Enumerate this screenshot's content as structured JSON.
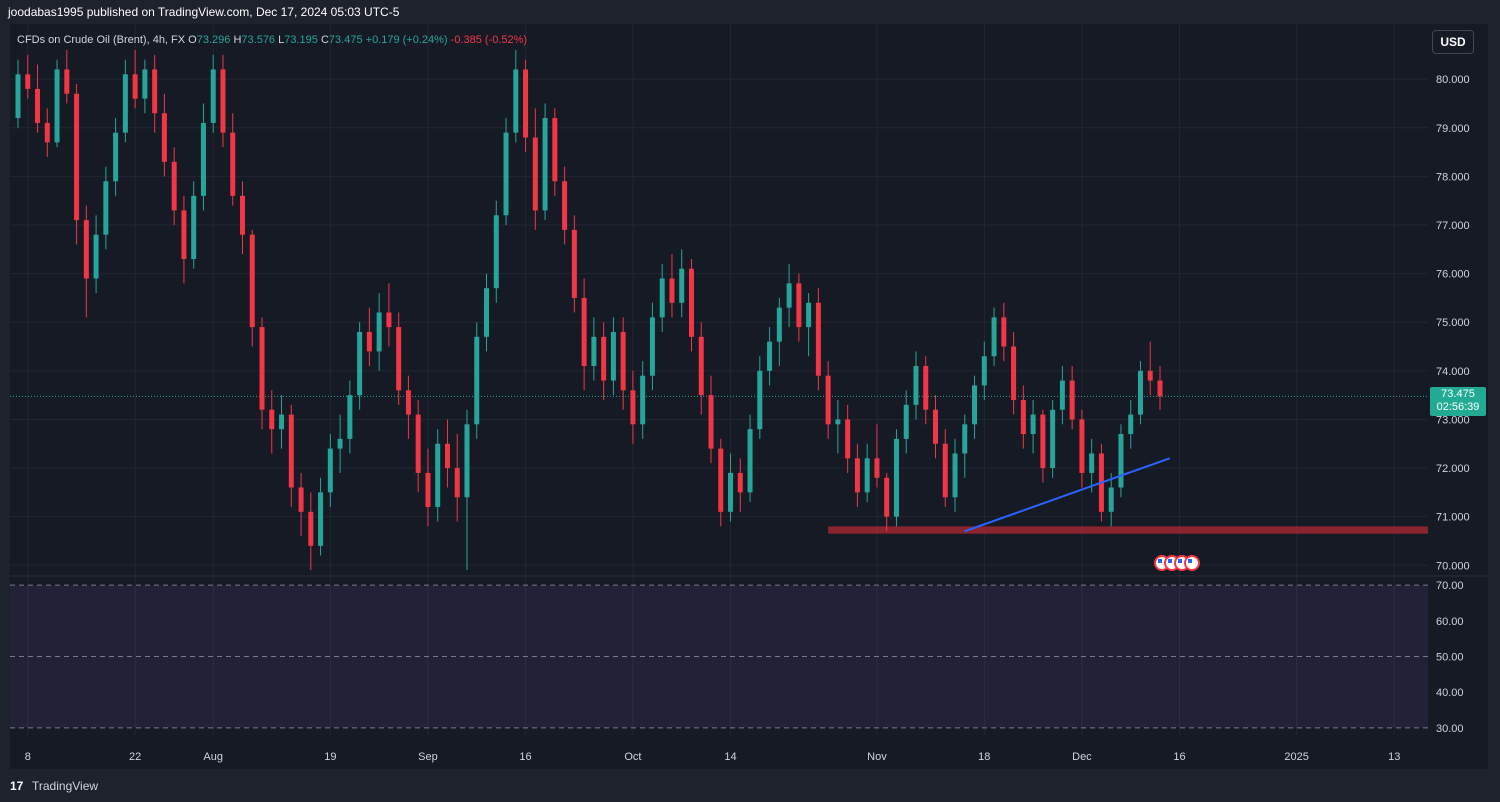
{
  "header": {
    "publisher_line": "joodabas1995 published on TradingView.com, Dec 17, 2024 05:03 UTC-5"
  },
  "legend": {
    "symbol": "CFDs on Crude Oil (Brent), 4h, FX",
    "open_label": "O",
    "open": "73.296",
    "high_label": "H",
    "high": "73.576",
    "low_label": "L",
    "low": "73.195",
    "close_label": "C",
    "close": "73.475",
    "change": "+0.179 (+0.24%)",
    "change2": "-0.385 (-0.52%)"
  },
  "controls": {
    "currency": "USD"
  },
  "last_price": {
    "price": "73.475",
    "countdown": "02:56:39"
  },
  "footer": {
    "brand": "TradingView",
    "logo_text": "17"
  },
  "colors": {
    "up": "#26a69a",
    "down": "#f23645",
    "trendline": "#2962ff",
    "support_zone": "#b22833",
    "rsi_band": "#7e57c2",
    "background": "#161a25"
  },
  "chart_data": {
    "type": "candlestick",
    "price_ylim": [
      69.8,
      80.6
    ],
    "price_ticks": [
      "80.000",
      "79.000",
      "78.000",
      "77.000",
      "76.000",
      "75.000",
      "74.000",
      "73.000",
      "72.000",
      "71.000",
      "70.000"
    ],
    "price_tick_values": [
      80,
      79,
      78,
      77,
      76,
      75,
      74,
      73,
      72,
      71,
      70
    ],
    "osc_ylim": [
      28,
      72
    ],
    "osc_ticks": [
      "70.00",
      "60.00",
      "50.00",
      "40.00",
      "30.00"
    ],
    "osc_tick_values": [
      70,
      60,
      50,
      40,
      30
    ],
    "osc_dashed_levels": [
      70,
      50,
      30
    ],
    "x_tick_labels": [
      "8",
      "22",
      "Aug",
      "19",
      "Sep",
      "16",
      "Oct",
      "14",
      "Nov",
      "18",
      "Dec",
      "16",
      "2025",
      "13"
    ],
    "x_tick_indices": [
      1,
      12,
      20,
      32,
      42,
      52,
      63,
      73,
      88,
      99,
      109,
      119,
      131,
      141
    ],
    "x_count": 150,
    "last_close": 73.475,
    "support_zone": {
      "x_start_index": 83,
      "y_low": 70.65,
      "y_high": 70.8
    },
    "trendline": {
      "x1_index": 97,
      "y1": 70.7,
      "x2_index": 118,
      "y2": 72.2
    },
    "ohlc": [
      [
        79.2,
        80.4,
        79.0,
        80.1
      ],
      [
        80.1,
        80.5,
        79.6,
        79.8
      ],
      [
        79.8,
        80.3,
        78.9,
        79.1
      ],
      [
        79.1,
        79.4,
        78.4,
        78.7
      ],
      [
        78.7,
        80.4,
        78.6,
        80.2
      ],
      [
        80.2,
        80.6,
        79.5,
        79.7
      ],
      [
        79.7,
        79.9,
        76.6,
        77.1
      ],
      [
        77.1,
        77.4,
        75.1,
        75.9
      ],
      [
        75.9,
        77.2,
        75.6,
        76.8
      ],
      [
        76.8,
        78.2,
        76.5,
        77.9
      ],
      [
        77.9,
        79.2,
        77.6,
        78.9
      ],
      [
        78.9,
        80.4,
        78.7,
        80.1
      ],
      [
        80.1,
        80.6,
        79.4,
        79.6
      ],
      [
        79.6,
        80.4,
        79.3,
        80.2
      ],
      [
        80.2,
        80.5,
        78.9,
        79.3
      ],
      [
        79.3,
        79.7,
        78.0,
        78.3
      ],
      [
        78.3,
        78.6,
        77.0,
        77.3
      ],
      [
        77.3,
        77.6,
        75.8,
        76.3
      ],
      [
        76.3,
        77.9,
        76.1,
        77.6
      ],
      [
        77.6,
        79.5,
        77.3,
        79.1
      ],
      [
        79.1,
        80.5,
        78.9,
        80.2
      ],
      [
        80.2,
        80.5,
        78.6,
        78.9
      ],
      [
        78.9,
        79.3,
        77.4,
        77.6
      ],
      [
        77.6,
        77.9,
        76.4,
        76.8
      ],
      [
        76.8,
        76.9,
        74.5,
        74.9
      ],
      [
        74.9,
        75.1,
        72.8,
        73.2
      ],
      [
        73.2,
        73.6,
        72.3,
        72.8
      ],
      [
        72.8,
        73.5,
        72.4,
        73.1
      ],
      [
        73.1,
        73.3,
        71.2,
        71.6
      ],
      [
        71.6,
        71.9,
        70.6,
        71.1
      ],
      [
        71.1,
        71.5,
        69.9,
        70.4
      ],
      [
        70.4,
        71.8,
        70.2,
        71.5
      ],
      [
        71.5,
        72.7,
        71.2,
        72.4
      ],
      [
        72.4,
        73.1,
        71.9,
        72.6
      ],
      [
        72.6,
        73.8,
        72.3,
        73.5
      ],
      [
        73.5,
        75.0,
        73.2,
        74.8
      ],
      [
        74.8,
        75.3,
        74.1,
        74.4
      ],
      [
        74.4,
        75.6,
        74.0,
        75.2
      ],
      [
        75.2,
        75.8,
        74.5,
        74.9
      ],
      [
        74.9,
        75.2,
        73.3,
        73.6
      ],
      [
        73.6,
        73.9,
        72.6,
        73.1
      ],
      [
        73.1,
        73.4,
        71.5,
        71.9
      ],
      [
        71.9,
        72.4,
        70.8,
        71.2
      ],
      [
        71.2,
        72.8,
        70.9,
        72.5
      ],
      [
        72.5,
        73.0,
        71.6,
        72.0
      ],
      [
        72.0,
        72.7,
        70.9,
        71.4
      ],
      [
        71.4,
        73.2,
        69.9,
        72.9
      ],
      [
        72.9,
        75.0,
        72.6,
        74.7
      ],
      [
        74.7,
        76.0,
        74.4,
        75.7
      ],
      [
        75.7,
        77.5,
        75.4,
        77.2
      ],
      [
        77.2,
        79.2,
        77.0,
        78.9
      ],
      [
        78.9,
        80.6,
        78.7,
        80.2
      ],
      [
        80.2,
        80.4,
        78.5,
        78.8
      ],
      [
        78.8,
        79.4,
        76.9,
        77.3
      ],
      [
        77.3,
        79.5,
        77.1,
        79.2
      ],
      [
        79.2,
        79.4,
        77.6,
        77.9
      ],
      [
        77.9,
        78.2,
        76.6,
        76.9
      ],
      [
        76.9,
        77.2,
        75.2,
        75.5
      ],
      [
        75.5,
        75.9,
        73.6,
        74.1
      ],
      [
        74.1,
        75.1,
        73.8,
        74.7
      ],
      [
        74.7,
        75.0,
        73.4,
        73.8
      ],
      [
        73.8,
        75.1,
        73.5,
        74.8
      ],
      [
        74.8,
        75.1,
        73.2,
        73.6
      ],
      [
        73.6,
        74.0,
        72.5,
        72.9
      ],
      [
        72.9,
        74.2,
        72.6,
        73.9
      ],
      [
        73.9,
        75.4,
        73.6,
        75.1
      ],
      [
        75.1,
        76.2,
        74.8,
        75.9
      ],
      [
        75.9,
        76.4,
        75.1,
        75.4
      ],
      [
        75.4,
        76.5,
        75.1,
        76.1
      ],
      [
        76.1,
        76.3,
        74.4,
        74.7
      ],
      [
        74.7,
        75.0,
        73.1,
        73.5
      ],
      [
        73.5,
        73.9,
        72.1,
        72.4
      ],
      [
        72.4,
        72.6,
        70.8,
        71.1
      ],
      [
        71.1,
        72.3,
        70.9,
        71.9
      ],
      [
        71.9,
        72.2,
        71.1,
        71.5
      ],
      [
        71.5,
        73.1,
        71.3,
        72.8
      ],
      [
        72.8,
        74.3,
        72.6,
        74.0
      ],
      [
        74.0,
        74.9,
        73.7,
        74.6
      ],
      [
        74.6,
        75.5,
        74.1,
        75.3
      ],
      [
        75.3,
        76.2,
        74.9,
        75.8
      ],
      [
        75.8,
        76.0,
        74.6,
        74.9
      ],
      [
        74.9,
        75.6,
        74.3,
        75.4
      ],
      [
        75.4,
        75.7,
        73.6,
        73.9
      ],
      [
        73.9,
        74.2,
        72.6,
        72.9
      ],
      [
        72.9,
        73.4,
        72.3,
        73.0
      ],
      [
        73.0,
        73.3,
        71.9,
        72.2
      ],
      [
        72.2,
        72.5,
        71.2,
        71.5
      ],
      [
        71.5,
        72.5,
        71.3,
        72.2
      ],
      [
        72.2,
        72.9,
        71.6,
        71.8
      ],
      [
        71.8,
        71.9,
        70.7,
        71.0
      ],
      [
        71.0,
        72.8,
        70.8,
        72.6
      ],
      [
        72.6,
        73.6,
        72.3,
        73.3
      ],
      [
        73.3,
        74.4,
        73.0,
        74.1
      ],
      [
        74.1,
        74.3,
        72.9,
        73.2
      ],
      [
        73.2,
        73.5,
        72.2,
        72.5
      ],
      [
        72.5,
        72.8,
        71.2,
        71.4
      ],
      [
        71.4,
        72.6,
        71.1,
        72.3
      ],
      [
        72.3,
        73.1,
        71.8,
        72.9
      ],
      [
        72.9,
        73.9,
        72.6,
        73.7
      ],
      [
        73.7,
        74.6,
        73.4,
        74.3
      ],
      [
        74.3,
        75.3,
        74.1,
        75.1
      ],
      [
        75.1,
        75.4,
        74.2,
        74.5
      ],
      [
        74.5,
        74.8,
        73.1,
        73.4
      ],
      [
        73.4,
        73.7,
        72.4,
        72.7
      ],
      [
        72.7,
        73.4,
        72.3,
        73.1
      ],
      [
        73.1,
        73.2,
        71.7,
        72.0
      ],
      [
        72.0,
        73.4,
        71.8,
        73.2
      ],
      [
        73.2,
        74.1,
        72.9,
        73.8
      ],
      [
        73.8,
        74.1,
        72.8,
        73.0
      ],
      [
        73.0,
        73.2,
        71.6,
        71.9
      ],
      [
        71.9,
        72.6,
        71.5,
        72.3
      ],
      [
        72.3,
        72.5,
        70.9,
        71.1
      ],
      [
        71.1,
        71.9,
        70.8,
        71.6
      ],
      [
        71.6,
        72.9,
        71.4,
        72.7
      ],
      [
        72.7,
        73.4,
        72.4,
        73.1
      ],
      [
        73.1,
        74.2,
        72.9,
        74.0
      ],
      [
        74.0,
        74.6,
        73.5,
        73.8
      ],
      [
        73.8,
        74.1,
        73.2,
        73.475
      ]
    ]
  }
}
